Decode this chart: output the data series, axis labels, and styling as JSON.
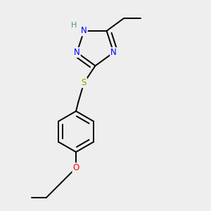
{
  "bg_color": "#eeeeee",
  "atom_colors": {
    "N": "#0000FF",
    "S": "#999900",
    "O": "#FF0000",
    "C": "#000000",
    "H": "#4a9090"
  },
  "bond_color": "#000000",
  "bond_width": 1.4,
  "font_size": 8.5
}
